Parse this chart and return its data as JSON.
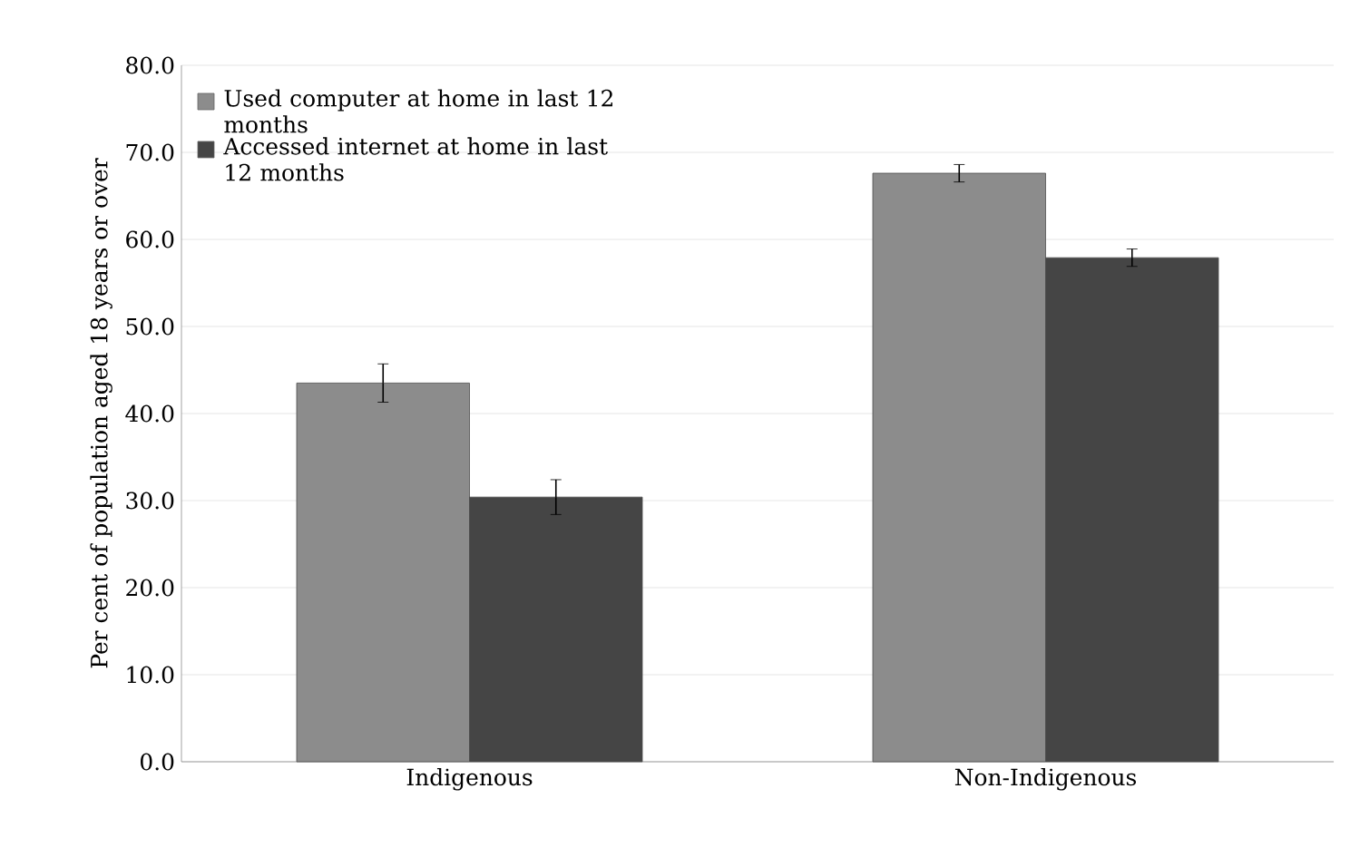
{
  "chart_data": {
    "type": "bar",
    "ylabel": "Per cent of population aged 18 years or over",
    "categories": [
      "Indigenous",
      "Non-Indigenous"
    ],
    "series": [
      {
        "name": "Used computer at home in last 12 months",
        "color": "#8c8c8c",
        "values": [
          43.5,
          67.6
        ],
        "errors": [
          2.2,
          1.0
        ]
      },
      {
        "name": "Accessed internet at home in last 12 months",
        "color": "#454545",
        "values": [
          30.4,
          57.9
        ],
        "errors": [
          2.0,
          1.0
        ]
      }
    ],
    "ylim": [
      0,
      80
    ],
    "yticks": [
      {
        "value": 0,
        "label": "0.0"
      },
      {
        "value": 10,
        "label": "10.0"
      },
      {
        "value": 20,
        "label": "20.0"
      },
      {
        "value": 30,
        "label": "30.0"
      },
      {
        "value": 40,
        "label": "40.0"
      },
      {
        "value": 50,
        "label": "50.0"
      },
      {
        "value": 60,
        "label": "60.0"
      },
      {
        "value": 70,
        "label": "70.0"
      },
      {
        "value": 80,
        "label": "80.0"
      }
    ],
    "grid": "y",
    "legend": "top left"
  }
}
